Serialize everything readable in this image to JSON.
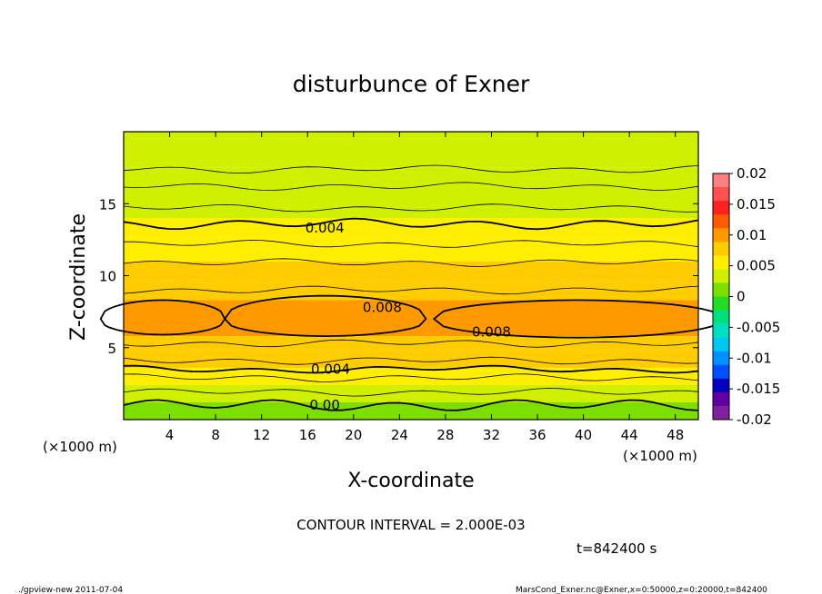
{
  "chart_data": {
    "type": "contour",
    "title": "disturbunce of Exner",
    "xlabel": "X-coordinate",
    "ylabel": "Z-coordinate",
    "x_unit": "(×1000 m)",
    "xlim": [
      0,
      50
    ],
    "ylim": [
      0,
      20
    ],
    "x_ticks": [
      4,
      8,
      12,
      16,
      20,
      24,
      28,
      32,
      36,
      40,
      44,
      48
    ],
    "y_ticks": [
      5,
      10,
      15
    ],
    "contour_interval_text": "CONTOUR INTERVAL = 2.000E-03",
    "time_text": "t=842400 s",
    "contour_labels": [
      {
        "text": "0.004",
        "x": 17.5,
        "z": 13.3
      },
      {
        "text": "0.008",
        "x": 22.5,
        "z": 7.8
      },
      {
        "text": "0.008",
        "x": 32.0,
        "z": 6.1
      },
      {
        "text": "0.004",
        "x": 18.0,
        "z": 3.5
      },
      {
        "text": "0.00",
        "x": 17.5,
        "z": 1.0
      }
    ],
    "value_bands": [
      {
        "z_from": 0.0,
        "z_to": 1.2,
        "value": -0.001
      },
      {
        "z_from": 1.2,
        "z_to": 2.4,
        "value": 0.0015
      },
      {
        "z_from": 2.4,
        "z_to": 3.6,
        "value": 0.0035
      },
      {
        "z_from": 3.6,
        "z_to": 4.8,
        "value": 0.0055
      },
      {
        "z_from": 4.8,
        "z_to": 5.8,
        "value": 0.0075
      },
      {
        "z_from": 5.8,
        "z_to": 8.3,
        "value": 0.0085
      },
      {
        "z_from": 8.3,
        "z_to": 9.5,
        "value": 0.0065
      },
      {
        "z_from": 9.5,
        "z_to": 11.0,
        "value": 0.0055
      },
      {
        "z_from": 11.0,
        "z_to": 12.5,
        "value": 0.0045
      },
      {
        "z_from": 12.5,
        "z_to": 14.0,
        "value": 0.0035
      },
      {
        "z_from": 14.0,
        "z_to": 15.8,
        "value": 0.0025
      },
      {
        "z_from": 15.8,
        "z_to": 17.5,
        "value": 0.0015
      },
      {
        "z_from": 17.5,
        "z_to": 20.0,
        "value": 0.0005
      }
    ],
    "colorbar": {
      "tick_labels": [
        "0.02",
        "0.015",
        "0.01",
        "0.005",
        "0",
        "-0.005",
        "-0.01",
        "-0.015",
        "-0.02"
      ],
      "levels": [
        0.02,
        0.0175,
        0.015,
        0.0125,
        0.01,
        0.0075,
        0.005,
        0.0025,
        0,
        -0.0025,
        -0.005,
        -0.0075,
        -0.01,
        -0.0125,
        -0.015,
        -0.0175,
        -0.02
      ],
      "colors": [
        "#ff8080",
        "#ff5050",
        "#ff2020",
        "#ff5a00",
        "#ff9900",
        "#ffcc00",
        "#ffee00",
        "#d0f000",
        "#7ddf00",
        "#22dd22",
        "#00e080",
        "#00e0c0",
        "#00c8f0",
        "#0090ff",
        "#0050ff",
        "#0000c0",
        "#6000a0",
        "#8020a0"
      ]
    }
  },
  "footer": {
    "left": "./gpview-new   2011-07-04",
    "right": "MarsCond_Exner.nc@Exner,x=0:50000,z=0:20000,t=842400"
  }
}
